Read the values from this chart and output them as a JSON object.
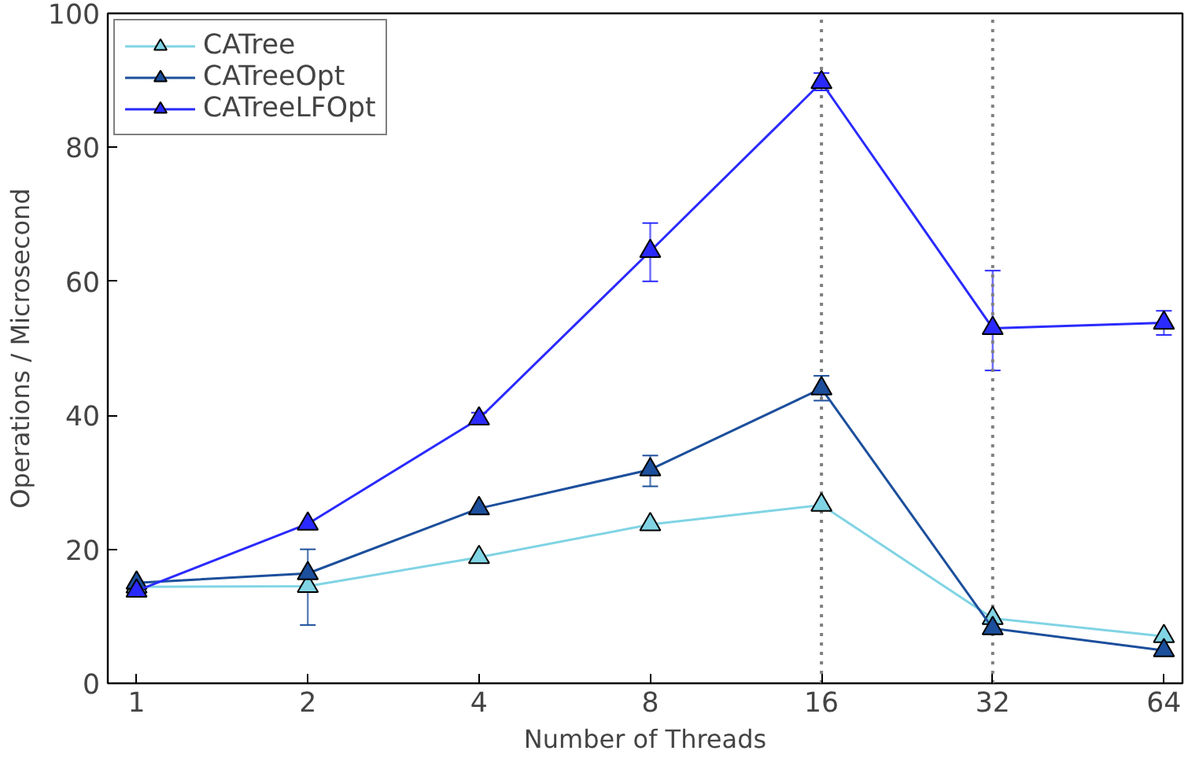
{
  "chart_data": {
    "type": "line",
    "xlabel": "Number of Threads",
    "ylabel": "Operations / Microsecond",
    "x": [
      1,
      2,
      4,
      8,
      16,
      32,
      64
    ],
    "log": "x",
    "xlim": [
      0.89,
      69
    ],
    "xticks": [
      1,
      2,
      4,
      8,
      16,
      32,
      64
    ],
    "ylim": [
      0,
      100
    ],
    "yticks": [
      0,
      20,
      40,
      60,
      80,
      100
    ],
    "grid": false,
    "legend": "top left",
    "line_style": "solid",
    "series": [
      {
        "name": "CATree",
        "color": "#80d4e4",
        "marker": "triangle",
        "values": [
          14.4,
          14.5,
          18.8,
          23.7,
          26.6,
          9.7,
          7.0
        ],
        "errors": [
          null,
          null,
          null,
          null,
          null,
          null,
          null
        ]
      },
      {
        "name": "CATreeOpt",
        "color": "#1c4f9c",
        "marker": "triangle",
        "values": [
          15.0,
          16.4,
          26.1,
          31.9,
          44.0,
          8.2,
          4.9
        ],
        "errors": [
          null,
          [
            8.7,
            20.0
          ],
          null,
          [
            29.4,
            34.0
          ],
          [
            42.2,
            45.9
          ],
          null,
          null
        ]
      },
      {
        "name": "CATreeLFOpt",
        "color": "#2a2aff",
        "marker": "triangle",
        "values": [
          13.8,
          23.8,
          39.5,
          64.5,
          89.7,
          53.0,
          53.8
        ],
        "errors": [
          null,
          null,
          [
            38.7,
            40.4
          ],
          [
            60.0,
            68.7
          ],
          [
            88.5,
            91.1
          ],
          [
            46.7,
            61.6
          ],
          [
            52.0,
            55.6
          ]
        ]
      }
    ],
    "ref_lines": [
      {
        "axis": "x",
        "value": 16,
        "color": "#808080",
        "line_style": "dotted"
      },
      {
        "axis": "x",
        "value": 32,
        "color": "#808080",
        "line_style": "dotted"
      }
    ]
  }
}
